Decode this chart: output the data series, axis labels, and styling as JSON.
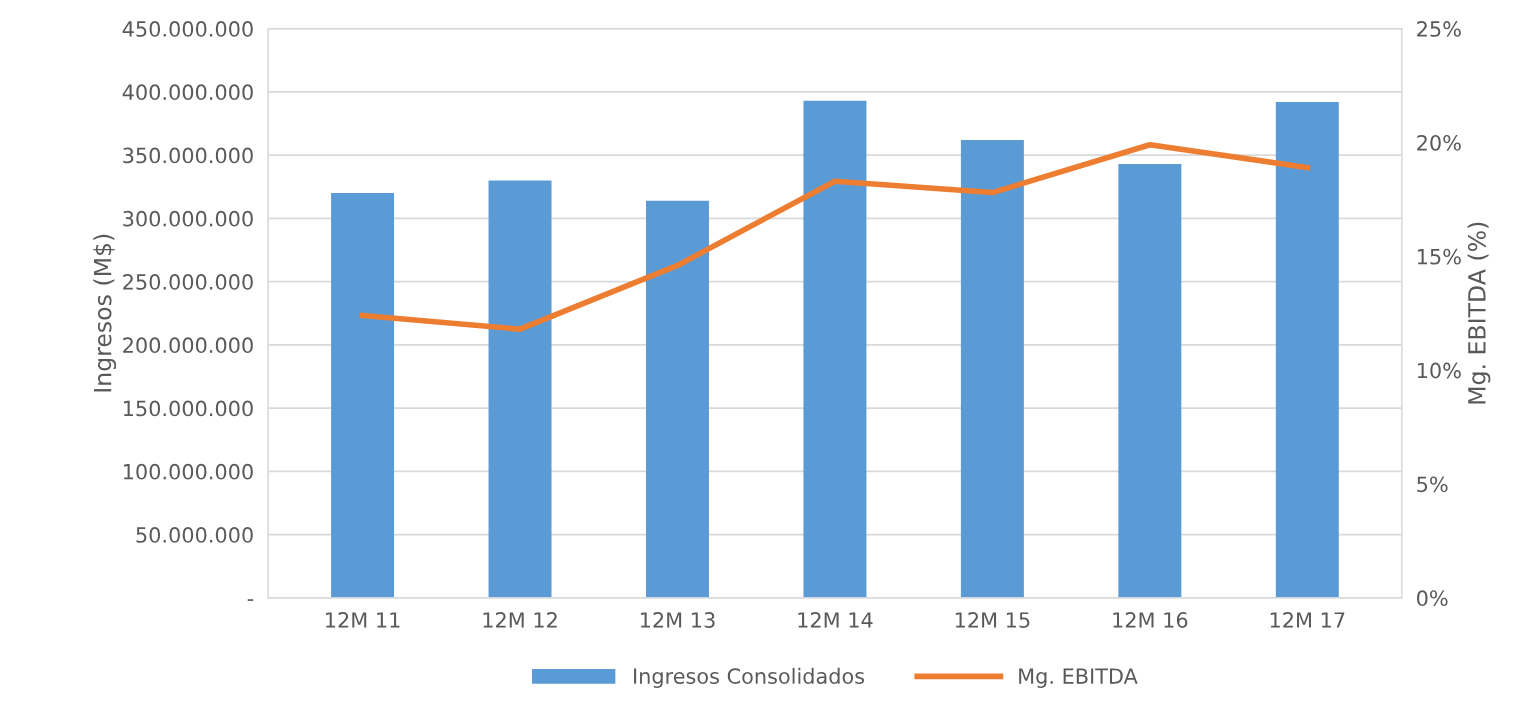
{
  "chart_data": {
    "type": "bar",
    "ylabel": "Ingresos (M$)",
    "y2label": "Mg. EBITDA (%)",
    "categories": [
      "12M 11",
      "12M 12",
      "12M 13",
      "12M 14",
      "12M 15",
      "12M 16",
      "12M 17"
    ],
    "series": [
      {
        "name": "Ingresos Consolidados",
        "color": "#5b9bd5",
        "values": [
          320000000,
          330000000,
          314000000,
          393000000,
          362000000,
          343000000,
          392000000
        ]
      },
      {
        "name": "Mg. EBITDA",
        "type": "line",
        "axis": "y2",
        "color": "#ed7d31",
        "values": [
          12.4,
          11.8,
          14.6,
          18.3,
          17.8,
          19.9,
          18.9
        ]
      }
    ],
    "ylim": [
      0,
      450000000
    ],
    "yticks": [
      {
        "value": 0,
        "label": "-"
      },
      {
        "value": 50000000,
        "label": "50.000.000"
      },
      {
        "value": 100000000,
        "label": "100.000.000"
      },
      {
        "value": 150000000,
        "label": "150.000.000"
      },
      {
        "value": 200000000,
        "label": "200.000.000"
      },
      {
        "value": 250000000,
        "label": "250.000.000"
      },
      {
        "value": 300000000,
        "label": "300.000.000"
      },
      {
        "value": 350000000,
        "label": "350.000.000"
      },
      {
        "value": 400000000,
        "label": "400.000.000"
      },
      {
        "value": 450000000,
        "label": "450.000.000"
      }
    ],
    "y2lim": [
      0,
      25
    ],
    "y2ticks": [
      {
        "value": 0,
        "label": "0%"
      },
      {
        "value": 5,
        "label": "5%"
      },
      {
        "value": 10,
        "label": "10%"
      },
      {
        "value": 15,
        "label": "15%"
      },
      {
        "value": 20,
        "label": "20%"
      },
      {
        "value": 25,
        "label": "25%"
      }
    ],
    "grid": "y",
    "legend": "bottom",
    "marker": "none",
    "line_style": "solid"
  }
}
